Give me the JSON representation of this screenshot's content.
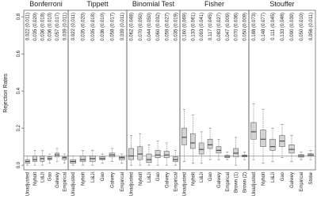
{
  "chart_data": [
    {
      "type": "box",
      "title": "Bonferroni",
      "y_label": "Rejection Rates",
      "ylim": [
        -0.025,
        0.835
      ],
      "yticks": [
        {
          "value": 0,
          "label": "0.0"
        },
        0.2,
        0.4,
        0.6,
        0.8
      ],
      "hline": 0.05,
      "categories": [
        "Unadjusted",
        "Nyholt",
        "Li&Ji",
        "Gao",
        "Galwey",
        "Empirical"
      ],
      "annotations": [
        "0.022 (0.011)",
        "0.035 (0.020)",
        "0.036 (0.018)",
        "0.036 (0.010)",
        "0.057 (0.017)",
        "0.039 (0.011)"
      ],
      "boxes": [
        [
          0.0,
          0.01,
          0.02,
          0.03,
          0.05
        ],
        [
          0.0,
          0.02,
          0.03,
          0.05,
          0.08
        ],
        [
          0.0,
          0.02,
          0.035,
          0.05,
          0.08
        ],
        [
          0.01,
          0.03,
          0.035,
          0.045,
          0.06
        ],
        [
          0.02,
          0.045,
          0.055,
          0.065,
          0.09
        ],
        [
          0.01,
          0.03,
          0.04,
          0.045,
          0.06
        ]
      ]
    },
    {
      "type": "box",
      "title": "Tippett",
      "ylim": [
        -0.025,
        0.835
      ],
      "hline": 0.05,
      "categories": [
        "Unadjusted",
        "Nyholt",
        "Li&Ji",
        "Gao",
        "Galwey",
        "Empirical"
      ],
      "annotations": [
        "0.022 (0.011)",
        "0.035 (0.020)",
        "0.035 (0.018)",
        "0.036 (0.010)",
        "0.058 (0.017)",
        "0.039 (0.011)"
      ],
      "boxes": [
        [
          0.0,
          0.01,
          0.02,
          0.03,
          0.05
        ],
        [
          0.0,
          0.02,
          0.03,
          0.05,
          0.08
        ],
        [
          0.0,
          0.02,
          0.035,
          0.05,
          0.08
        ],
        [
          0.01,
          0.03,
          0.035,
          0.045,
          0.06
        ],
        [
          0.02,
          0.045,
          0.055,
          0.065,
          0.09
        ],
        [
          0.01,
          0.03,
          0.04,
          0.045,
          0.06
        ]
      ]
    },
    {
      "type": "box",
      "title": "Binomial Test",
      "ylim": [
        -0.025,
        0.835
      ],
      "hline": 0.05,
      "categories": [
        "Unadjusted",
        "Nyholt",
        "Li&Ji",
        "Gao",
        "Galwey",
        "Empirical"
      ],
      "annotations": [
        "0.062 (0.048)",
        "0.070 (0.050)",
        "0.044 (0.050)",
        "0.060 (0.032)",
        "0.059 (0.027)",
        "0.035 (0.019)"
      ],
      "boxes": [
        [
          0.0,
          0.03,
          0.05,
          0.09,
          0.16
        ],
        [
          0.0,
          0.03,
          0.06,
          0.1,
          0.17
        ],
        [
          0.0,
          0.015,
          0.03,
          0.06,
          0.11
        ],
        [
          0.0,
          0.04,
          0.055,
          0.08,
          0.13
        ],
        [
          0.0,
          0.04,
          0.055,
          0.075,
          0.12
        ],
        [
          0.0,
          0.02,
          0.03,
          0.045,
          0.08
        ]
      ]
    },
    {
      "type": "box",
      "title": "Fisher",
      "ylim": [
        -0.025,
        0.835
      ],
      "hline": 0.05,
      "categories": [
        "Unadjusted",
        "Nyholt",
        "Li&Ji",
        "Gao",
        "Galwey",
        "Empirical",
        "Brown (1)",
        "Brown (2)"
      ],
      "annotations": [
        "0.160 (0.069)",
        "0.133 (0.061)",
        "0.093 (0.041)",
        "0.117 (0.045)",
        "0.083 (0.027)",
        "0.047 (0.009)",
        "0.070 (0.036)",
        "0.050 (0.009)"
      ],
      "boxes": [
        [
          0.02,
          0.11,
          0.15,
          0.2,
          0.3
        ],
        [
          0.01,
          0.09,
          0.12,
          0.17,
          0.27
        ],
        [
          0.01,
          0.06,
          0.085,
          0.12,
          0.18
        ],
        [
          0.03,
          0.09,
          0.11,
          0.14,
          0.2
        ],
        [
          0.03,
          0.065,
          0.08,
          0.1,
          0.14
        ],
        [
          0.03,
          0.04,
          0.047,
          0.053,
          0.07
        ],
        [
          0.0,
          0.045,
          0.065,
          0.09,
          0.15
        ],
        [
          0.03,
          0.045,
          0.05,
          0.055,
          0.07
        ]
      ]
    },
    {
      "type": "box",
      "title": "Stouffer",
      "ylim": [
        -0.025,
        0.835
      ],
      "hline": 0.05,
      "categories": [
        "Unadjusted",
        "Nyholt",
        "Li&Ji",
        "Gao",
        "Galwey",
        "Empirical",
        "Stobe"
      ],
      "annotations": [
        "0.188 (0.073)",
        "0.148 (0.077)",
        "0.111 (0.045)",
        "0.133 (0.048)",
        "0.090 (0.039)",
        "0.050 (0.010)",
        "0.056 (0.011)"
      ],
      "boxes": [
        [
          0.03,
          0.14,
          0.18,
          0.23,
          0.33
        ],
        [
          0.01,
          0.1,
          0.14,
          0.19,
          0.3
        ],
        [
          0.02,
          0.08,
          0.1,
          0.14,
          0.2
        ],
        [
          0.04,
          0.1,
          0.13,
          0.16,
          0.22
        ],
        [
          0.02,
          0.065,
          0.085,
          0.11,
          0.16
        ],
        [
          0.03,
          0.043,
          0.05,
          0.057,
          0.07
        ],
        [
          0.03,
          0.048,
          0.055,
          0.062,
          0.08
        ]
      ]
    }
  ]
}
